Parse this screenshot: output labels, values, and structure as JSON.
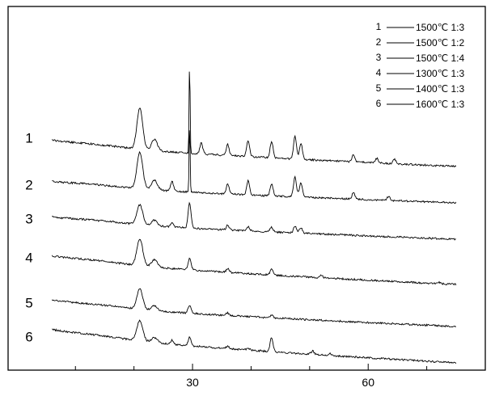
{
  "chart_data": {
    "type": "line",
    "title": "",
    "xlabel": "",
    "ylabel": "",
    "xlim": [
      -1.5,
      80
    ],
    "x_ticks": [
      30,
      60
    ],
    "x_tick_labels": [
      "30",
      "60"
    ],
    "y_ticks_shown": false,
    "grid": false,
    "legend_position": "top-right",
    "stacked_offset": true,
    "series": [
      {
        "label": "1",
        "legend": "1500℃ 1:3",
        "peaks": [
          [
            21,
            0.45
          ],
          [
            23.5,
            0.12
          ],
          [
            29.5,
            1.0
          ],
          [
            31.5,
            0.12
          ],
          [
            36,
            0.12
          ],
          [
            39.5,
            0.18
          ],
          [
            43.5,
            0.18
          ],
          [
            47.5,
            0.25
          ],
          [
            48.5,
            0.18
          ],
          [
            57.5,
            0.08
          ],
          [
            61.5,
            0.05
          ],
          [
            64.5,
            0.05
          ]
        ]
      },
      {
        "label": "2",
        "legend": "1500℃ 1:2",
        "peaks": [
          [
            21,
            0.45
          ],
          [
            23.5,
            0.12
          ],
          [
            26.5,
            0.12
          ],
          [
            29.5,
            0.85
          ],
          [
            36,
            0.12
          ],
          [
            39.5,
            0.18
          ],
          [
            43.5,
            0.15
          ],
          [
            47.5,
            0.25
          ],
          [
            48.5,
            0.18
          ],
          [
            57.5,
            0.08
          ],
          [
            63.5,
            0.05
          ]
        ]
      },
      {
        "label": "3",
        "legend": "1500℃ 1:4",
        "peaks": [
          [
            21,
            0.35
          ],
          [
            23.5,
            0.1
          ],
          [
            26.5,
            0.08
          ],
          [
            29.5,
            0.45
          ],
          [
            36,
            0.08
          ],
          [
            39.5,
            0.08
          ],
          [
            43.5,
            0.08
          ],
          [
            47.5,
            0.12
          ],
          [
            48.5,
            0.1
          ]
        ]
      },
      {
        "label": "4",
        "legend": "1300℃ 1:3",
        "peaks": [
          [
            21,
            0.55
          ],
          [
            23.5,
            0.15
          ],
          [
            29.5,
            0.25
          ],
          [
            36,
            0.08
          ],
          [
            43.5,
            0.12
          ],
          [
            52,
            0.05
          ],
          [
            72,
            0.03
          ]
        ]
      },
      {
        "label": "5",
        "legend": "1400℃ 1:3",
        "peaks": [
          [
            21,
            0.5
          ],
          [
            23.5,
            0.12
          ],
          [
            29.5,
            0.2
          ],
          [
            36,
            0.06
          ],
          [
            43.5,
            0.06
          ]
        ]
      },
      {
        "label": "6",
        "legend": "1600℃ 1:3",
        "peaks": [
          [
            21,
            0.5
          ],
          [
            23.5,
            0.12
          ],
          [
            26.5,
            0.1
          ],
          [
            29.5,
            0.2
          ],
          [
            36,
            0.06
          ],
          [
            39.5,
            0.05
          ],
          [
            43.5,
            0.35
          ],
          [
            50.5,
            0.08
          ],
          [
            53.5,
            0.05
          ]
        ]
      }
    ]
  }
}
